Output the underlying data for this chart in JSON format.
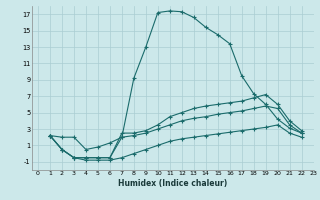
{
  "xlabel": "Humidex (Indice chaleur)",
  "bg_color": "#cce8ea",
  "grid_color": "#aacdd2",
  "line_color": "#1a6b6b",
  "xlim": [
    -0.5,
    23
  ],
  "ylim": [
    -2,
    18
  ],
  "xticks": [
    0,
    1,
    2,
    3,
    4,
    5,
    6,
    7,
    8,
    9,
    10,
    11,
    12,
    13,
    14,
    15,
    16,
    17,
    18,
    19,
    20,
    21,
    22,
    23
  ],
  "yticks": [
    -1,
    1,
    3,
    5,
    7,
    9,
    11,
    13,
    15,
    17
  ],
  "curve1_x": [
    1,
    2,
    3,
    4,
    5,
    6,
    7,
    8,
    9,
    10,
    11,
    12,
    13,
    14,
    15,
    16,
    17,
    18,
    19,
    20,
    21,
    22
  ],
  "curve1_y": [
    2.2,
    2.0,
    2.0,
    0.5,
    0.8,
    1.3,
    2.0,
    9.2,
    13.0,
    17.2,
    17.4,
    17.3,
    16.6,
    15.4,
    14.5,
    13.4,
    9.5,
    7.3,
    6.0,
    4.2,
    3.1,
    2.5
  ],
  "curve2_x": [
    1,
    2,
    3,
    4,
    5,
    6,
    7,
    8,
    9,
    10,
    11,
    12,
    13,
    14,
    15,
    16,
    17,
    18,
    19,
    20,
    21,
    22
  ],
  "curve2_y": [
    2.2,
    0.5,
    -0.5,
    -0.5,
    -0.5,
    -0.5,
    2.5,
    2.5,
    2.8,
    3.5,
    4.5,
    5.0,
    5.5,
    5.8,
    6.0,
    6.2,
    6.4,
    6.8,
    7.2,
    6.0,
    4.0,
    2.8
  ],
  "curve3_x": [
    1,
    2,
    3,
    4,
    5,
    6,
    7,
    8,
    9,
    10,
    11,
    12,
    13,
    14,
    15,
    16,
    17,
    18,
    19,
    20,
    21,
    22
  ],
  "curve3_y": [
    2.2,
    0.5,
    -0.5,
    -0.5,
    -0.5,
    -0.5,
    2.0,
    2.2,
    2.5,
    3.0,
    3.5,
    4.0,
    4.3,
    4.5,
    4.8,
    5.0,
    5.2,
    5.5,
    5.8,
    5.5,
    3.5,
    2.5
  ],
  "curve4_x": [
    1,
    2,
    3,
    4,
    5,
    6,
    7,
    8,
    9,
    10,
    11,
    12,
    13,
    14,
    15,
    16,
    17,
    18,
    19,
    20,
    21,
    22
  ],
  "curve4_y": [
    2.2,
    0.5,
    -0.5,
    -0.8,
    -0.8,
    -0.8,
    -0.5,
    0.0,
    0.5,
    1.0,
    1.5,
    1.8,
    2.0,
    2.2,
    2.4,
    2.6,
    2.8,
    3.0,
    3.2,
    3.5,
    2.5,
    2.0
  ]
}
